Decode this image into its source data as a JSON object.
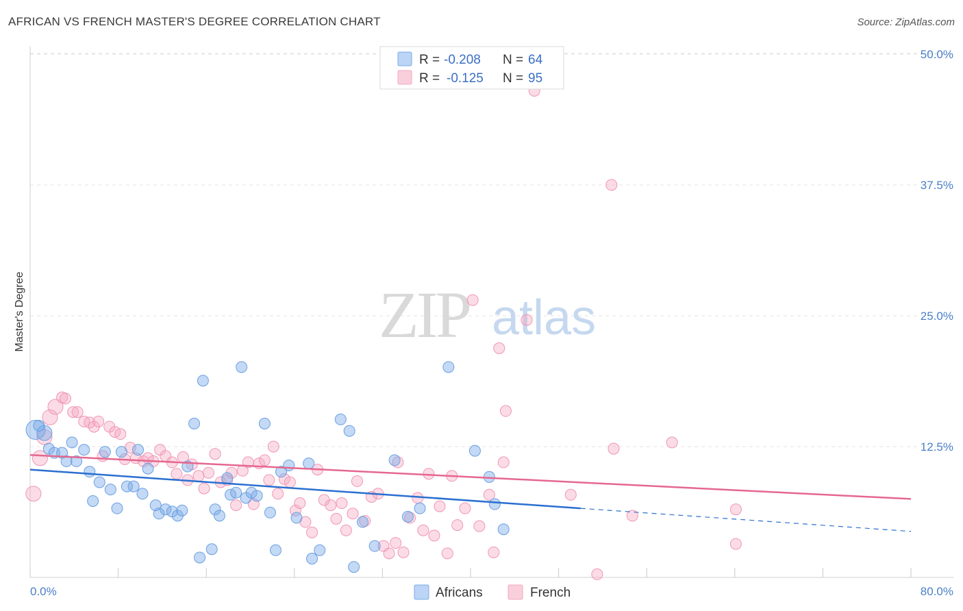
{
  "title": "AFRICAN VS FRENCH MASTER'S DEGREE CORRELATION CHART",
  "source": "Source: ZipAtlas.com",
  "watermark": {
    "zip": "ZIP",
    "atlas": "atlas"
  },
  "legend": {
    "africans": {
      "r_label": "R =",
      "r_value": "-0.208",
      "n_label": "N =",
      "n_value": "64"
    },
    "french": {
      "r_label": "R =",
      "r_value": "-0.125",
      "n_label": "N =",
      "n_value": "95"
    }
  },
  "colors": {
    "africans": "#7aaae8",
    "africans_line": "#2a6fd0",
    "french": "#f4a7c0",
    "french_line": "#e5678f"
  },
  "chart_data": {
    "type": "scatter",
    "title": "AFRICAN VS FRENCH MASTER'S DEGREE CORRELATION CHART",
    "xlabel": "",
    "ylabel": "Master's Degree",
    "xlim": [
      0,
      80
    ],
    "ylim": [
      0,
      50
    ],
    "x_ticks": [
      "0.0%",
      "80.0%"
    ],
    "y_ticks": [
      {
        "value": 50,
        "label": "50.0%"
      },
      {
        "value": 37.5,
        "label": "37.5%"
      },
      {
        "value": 25,
        "label": "25.0%"
      },
      {
        "value": 12.5,
        "label": "12.5%"
      }
    ],
    "legend_position": "top-center",
    "bottom_legend": [
      "Africans",
      "French"
    ],
    "series": [
      {
        "name": "Africans",
        "trend": {
          "x0": 0,
          "y0": 10.3,
          "x1": 50,
          "y1": 6.6,
          "dash_x1": 80,
          "dash_y1": 4.4
        },
        "points": [
          [
            0.5,
            14.1,
            3
          ],
          [
            1.3,
            13.8,
            2
          ],
          [
            1.7,
            12.3,
            1
          ],
          [
            2.2,
            11.9,
            1
          ],
          [
            2.9,
            11.9,
            1
          ],
          [
            3.3,
            11.1,
            1
          ],
          [
            3.8,
            12.9,
            1
          ],
          [
            4.2,
            11.1,
            1
          ],
          [
            4.9,
            12.2,
            1
          ],
          [
            5.4,
            10.1,
            1
          ],
          [
            5.7,
            7.3,
            1
          ],
          [
            6.3,
            9.1,
            1
          ],
          [
            6.8,
            12.0,
            1
          ],
          [
            7.3,
            8.4,
            1
          ],
          [
            7.9,
            6.6,
            1
          ],
          [
            8.3,
            12.0,
            1
          ],
          [
            8.8,
            8.7,
            1
          ],
          [
            9.4,
            8.7,
            1
          ],
          [
            9.8,
            12.2,
            1
          ],
          [
            10.2,
            8.0,
            1
          ],
          [
            10.7,
            10.4,
            1
          ],
          [
            11.4,
            6.9,
            1
          ],
          [
            11.7,
            6.1,
            1
          ],
          [
            12.3,
            6.5,
            1
          ],
          [
            12.9,
            6.3,
            1
          ],
          [
            13.4,
            5.9,
            1
          ],
          [
            13.8,
            6.4,
            1
          ],
          [
            14.3,
            10.6,
            1
          ],
          [
            14.9,
            14.7,
            1
          ],
          [
            15.4,
            1.9,
            1
          ],
          [
            15.7,
            18.8,
            1
          ],
          [
            16.5,
            2.7,
            1
          ],
          [
            16.8,
            6.5,
            1
          ],
          [
            17.2,
            5.9,
            1
          ],
          [
            17.9,
            9.5,
            1
          ],
          [
            18.2,
            7.9,
            1
          ],
          [
            18.7,
            8.1,
            1
          ],
          [
            19.2,
            20.1,
            1
          ],
          [
            19.6,
            7.6,
            1
          ],
          [
            20.1,
            8.1,
            1
          ],
          [
            20.6,
            7.8,
            1
          ],
          [
            21.3,
            14.7,
            1
          ],
          [
            21.8,
            6.2,
            1
          ],
          [
            22.3,
            2.6,
            1
          ],
          [
            22.8,
            10.1,
            1
          ],
          [
            23.5,
            10.7,
            1
          ],
          [
            24.2,
            5.7,
            1
          ],
          [
            25.3,
            10.9,
            1
          ],
          [
            25.6,
            1.8,
            1
          ],
          [
            26.3,
            2.6,
            1
          ],
          [
            28.2,
            15.1,
            1
          ],
          [
            29.0,
            14.0,
            1
          ],
          [
            29.4,
            1.0,
            1
          ],
          [
            30.2,
            5.3,
            1
          ],
          [
            31.3,
            3.0,
            1
          ],
          [
            33.1,
            11.2,
            1
          ],
          [
            34.3,
            5.8,
            1
          ],
          [
            35.4,
            6.6,
            1
          ],
          [
            38.0,
            20.1,
            1
          ],
          [
            40.4,
            12.1,
            1
          ],
          [
            41.7,
            9.6,
            1
          ],
          [
            42.2,
            7.0,
            1
          ],
          [
            43.0,
            4.6,
            1
          ],
          [
            0.8,
            14.5,
            1
          ]
        ]
      },
      {
        "name": "French",
        "trend": {
          "x0": 0,
          "y0": 11.7,
          "x1": 80,
          "y1": 7.5
        },
        "points": [
          [
            0.3,
            8.0,
            2
          ],
          [
            0.9,
            11.4,
            2
          ],
          [
            1.3,
            13.4,
            2
          ],
          [
            1.8,
            15.3,
            2
          ],
          [
            2.3,
            16.3,
            2
          ],
          [
            2.9,
            17.2,
            1
          ],
          [
            3.2,
            17.1,
            1
          ],
          [
            3.9,
            15.8,
            1
          ],
          [
            4.3,
            15.8,
            1
          ],
          [
            4.9,
            14.9,
            1
          ],
          [
            5.4,
            14.8,
            1
          ],
          [
            5.8,
            14.4,
            1
          ],
          [
            6.2,
            14.9,
            1
          ],
          [
            6.6,
            11.6,
            1
          ],
          [
            7.2,
            14.4,
            1
          ],
          [
            7.7,
            13.9,
            1
          ],
          [
            8.2,
            13.7,
            1
          ],
          [
            8.6,
            11.3,
            1
          ],
          [
            9.1,
            12.4,
            1
          ],
          [
            9.6,
            11.4,
            1
          ],
          [
            10.3,
            11.1,
            1
          ],
          [
            10.7,
            11.4,
            1
          ],
          [
            11.2,
            11.1,
            1
          ],
          [
            11.8,
            12.2,
            1
          ],
          [
            12.3,
            11.6,
            1
          ],
          [
            12.9,
            11.0,
            1
          ],
          [
            13.3,
            9.9,
            1
          ],
          [
            13.9,
            11.5,
            1
          ],
          [
            14.3,
            9.3,
            1
          ],
          [
            14.7,
            10.8,
            1
          ],
          [
            15.3,
            9.7,
            1
          ],
          [
            15.8,
            8.5,
            1
          ],
          [
            16.2,
            10.0,
            1
          ],
          [
            16.8,
            11.8,
            1
          ],
          [
            17.3,
            9.1,
            1
          ],
          [
            17.9,
            9.3,
            1
          ],
          [
            18.3,
            10.0,
            1
          ],
          [
            18.7,
            6.9,
            1
          ],
          [
            19.3,
            10.2,
            1
          ],
          [
            19.8,
            11.0,
            1
          ],
          [
            20.3,
            7.0,
            1
          ],
          [
            20.8,
            10.9,
            1
          ],
          [
            21.3,
            11.2,
            1
          ],
          [
            21.7,
            9.3,
            1
          ],
          [
            22.1,
            12.5,
            1
          ],
          [
            22.5,
            8.0,
            1
          ],
          [
            23.1,
            9.4,
            1
          ],
          [
            23.6,
            9.1,
            1
          ],
          [
            24.1,
            6.4,
            1
          ],
          [
            24.5,
            7.1,
            1
          ],
          [
            25.0,
            5.3,
            1
          ],
          [
            25.6,
            4.3,
            1
          ],
          [
            26.1,
            10.3,
            1
          ],
          [
            26.7,
            7.4,
            1
          ],
          [
            27.3,
            6.9,
            1
          ],
          [
            27.8,
            5.6,
            1
          ],
          [
            28.3,
            7.1,
            1
          ],
          [
            28.7,
            4.5,
            1
          ],
          [
            29.3,
            6.1,
            1
          ],
          [
            29.7,
            9.2,
            1
          ],
          [
            30.4,
            5.4,
            1
          ],
          [
            31.0,
            7.7,
            1
          ],
          [
            31.6,
            8.0,
            1
          ],
          [
            32.1,
            3.0,
            1
          ],
          [
            32.6,
            2.3,
            1
          ],
          [
            33.2,
            3.3,
            1
          ],
          [
            33.4,
            11.0,
            1
          ],
          [
            33.9,
            2.4,
            1
          ],
          [
            34.5,
            5.7,
            1
          ],
          [
            35.2,
            7.6,
            1
          ],
          [
            35.7,
            4.5,
            1
          ],
          [
            36.2,
            9.9,
            1
          ],
          [
            36.7,
            4.0,
            1
          ],
          [
            37.2,
            6.8,
            1
          ],
          [
            37.9,
            2.3,
            1
          ],
          [
            38.3,
            9.7,
            1
          ],
          [
            38.8,
            5.0,
            1
          ],
          [
            39.5,
            6.6,
            1
          ],
          [
            40.2,
            26.5,
            1
          ],
          [
            40.8,
            4.9,
            1
          ],
          [
            41.7,
            7.9,
            1
          ],
          [
            42.1,
            2.4,
            1
          ],
          [
            42.6,
            21.9,
            1
          ],
          [
            43.0,
            11.0,
            1
          ],
          [
            43.2,
            15.9,
            1
          ],
          [
            45.1,
            24.6,
            1
          ],
          [
            45.8,
            46.5,
            1
          ],
          [
            49.1,
            7.9,
            1
          ],
          [
            52.8,
            37.5,
            1
          ],
          [
            53.0,
            12.3,
            1
          ],
          [
            54.7,
            5.9,
            1
          ],
          [
            58.3,
            12.9,
            1
          ],
          [
            64.1,
            6.5,
            1
          ],
          [
            64.1,
            3.2,
            1
          ],
          [
            51.5,
            0.3,
            1
          ]
        ]
      }
    ]
  }
}
